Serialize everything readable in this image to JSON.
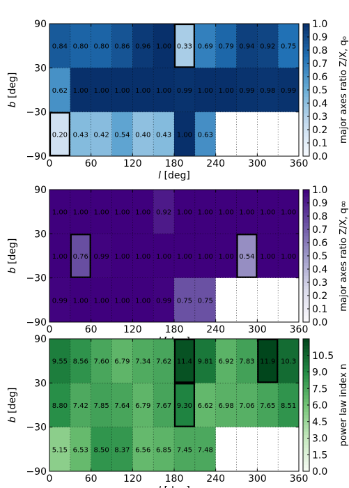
{
  "chart_data": [
    {
      "type": "heatmap",
      "xlabel": "l [deg]",
      "ylabel": "b [deg]",
      "xlim": [
        0,
        360
      ],
      "ylim": [
        -90,
        90
      ],
      "x_ticks": [
        "0",
        "60",
        "120",
        "180",
        "240",
        "300",
        "360"
      ],
      "y_ticks": [
        "90",
        "30",
        "−30",
        "−90"
      ],
      "row_labels": [
        "b 30 to 90",
        "b −30 to 30",
        "b −90 to −30"
      ],
      "col_labels": [
        "0–30",
        "30–60",
        "60–90",
        "90–120",
        "120–150",
        "150–180",
        "180–210",
        "210–240",
        "240–270",
        "270–300",
        "300–330",
        "330–360"
      ],
      "cells": [
        [
          "0.84",
          "0.80",
          "0.80",
          "0.86",
          "0.96",
          "1.00",
          "0.33",
          "0.69",
          "0.79",
          "0.94",
          "0.92",
          "0.75"
        ],
        [
          "0.62",
          "1.00",
          "1.00",
          "1.00",
          "1.00",
          "1.00",
          "0.99",
          "1.00",
          "1.00",
          "0.99",
          "0.98",
          "0.99"
        ],
        [
          "0.20",
          "0.43",
          "0.42",
          "0.54",
          "0.40",
          "0.43",
          "1.00",
          "0.63",
          "",
          "",
          "",
          ""
        ]
      ],
      "highlighted": [
        [
          0,
          6
        ],
        [
          2,
          0
        ]
      ],
      "vmin": 0,
      "vmax": 1.0,
      "colorbar_label": "major axes ratio Z/X, q₀",
      "colorbar_ticks": [
        "1.0",
        "0.9",
        "0.8",
        "0.7",
        "0.6",
        "0.5",
        "0.4",
        "0.3",
        "0.2",
        "0.1",
        "0.0"
      ],
      "colormap": [
        "#f7fbff",
        "#c6dbef",
        "#6baed6",
        "#2171b5",
        "#08306b"
      ]
    },
    {
      "type": "heatmap",
      "xlabel": "l [deg]",
      "ylabel": "b [deg]",
      "xlim": [
        0,
        360
      ],
      "ylim": [
        -90,
        90
      ],
      "x_ticks": [
        "0",
        "60",
        "120",
        "180",
        "240",
        "300",
        "360"
      ],
      "y_ticks": [
        "90",
        "30",
        "−30",
        "−90"
      ],
      "cells": [
        [
          "1.00",
          "1.00",
          "1.00",
          "1.00",
          "1.00",
          "0.92",
          "1.00",
          "1.00",
          "1.00",
          "1.00",
          "1.00",
          "1.00"
        ],
        [
          "1.00",
          "0.76",
          "0.99",
          "1.00",
          "1.00",
          "1.00",
          "1.00",
          "1.00",
          "1.00",
          "0.54",
          "1.00",
          "1.00"
        ],
        [
          "0.99",
          "1.00",
          "1.00",
          "1.00",
          "1.00",
          "0.99",
          "0.75",
          "0.75",
          "",
          "",
          "",
          ""
        ]
      ],
      "highlighted": [
        [
          1,
          1
        ],
        [
          1,
          9
        ]
      ],
      "vmin": 0,
      "vmax": 1.0,
      "colorbar_label": "major axes ratio Z/X, q∞",
      "colorbar_ticks": [
        "1.0",
        "0.9",
        "0.8",
        "0.7",
        "0.6",
        "0.5",
        "0.4",
        "0.3",
        "0.2",
        "0.1",
        "0.0"
      ],
      "colormap": [
        "#fcfbfd",
        "#dadaeb",
        "#9e9ac8",
        "#6a51a3",
        "#3f007d"
      ]
    },
    {
      "type": "heatmap",
      "xlabel": "l [deg]",
      "ylabel": "b [deg]",
      "xlim": [
        0,
        360
      ],
      "ylim": [
        -90,
        90
      ],
      "x_ticks": [
        "0",
        "60",
        "120",
        "180",
        "240",
        "300",
        "360"
      ],
      "y_ticks": [
        "90",
        "30",
        "−30",
        "−90"
      ],
      "cells": [
        [
          "9.55",
          "8.56",
          "7.60",
          "6.79",
          "7.34",
          "7.62",
          "11.4",
          "9.81",
          "6.92",
          "7.83",
          "11.9",
          "10.3"
        ],
        [
          "8.80",
          "7.42",
          "7.85",
          "7.64",
          "6.79",
          "7.67",
          "9.30",
          "6.62",
          "6.98",
          "7.06",
          "7.65",
          "8.51"
        ],
        [
          "5.15",
          "6.53",
          "8.50",
          "8.37",
          "6.56",
          "6.85",
          "7.45",
          "7.48",
          "",
          "",
          "",
          ""
        ]
      ],
      "highlighted": [
        [
          0,
          6
        ],
        [
          1,
          6
        ],
        [
          0,
          10
        ]
      ],
      "vmin": 0,
      "vmax": 12,
      "colorbar_label": "power law index n",
      "colorbar_ticks": [
        "10.5",
        "9.0",
        "7.5",
        "6.0",
        "4.5",
        "3.0",
        "1.5",
        "0.0"
      ],
      "colorbar_tick_values": [
        10.5,
        9.0,
        7.5,
        6.0,
        4.5,
        3.0,
        1.5,
        0.0
      ],
      "colormap": [
        "#f7fcf5",
        "#c7e9c0",
        "#74c476",
        "#238b45",
        "#00441b"
      ]
    }
  ]
}
